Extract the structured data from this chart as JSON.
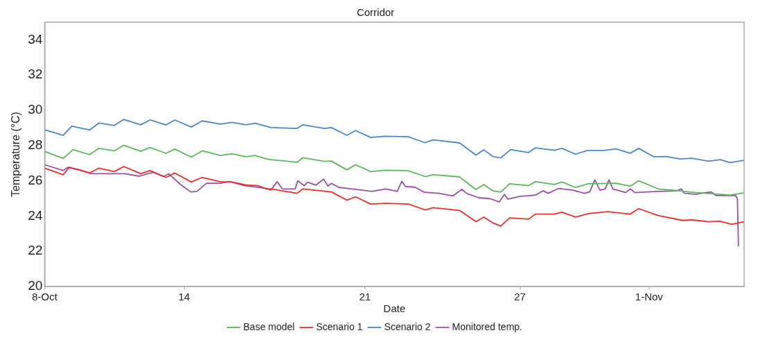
{
  "chart_data": {
    "type": "line",
    "title": "Corridor",
    "xlabel": "Date",
    "ylabel": "Temperature (°C)",
    "xlim": [
      8.6,
      35.68
    ],
    "xticks": [
      {
        "value": 8.6,
        "label": "8-Oct"
      },
      14,
      21,
      27,
      {
        "value": 32,
        "label": "1-Nov"
      }
    ],
    "ylim": [
      20,
      35
    ],
    "yticks": [
      20,
      22,
      24,
      26,
      28,
      30,
      32,
      34
    ],
    "grid": false,
    "legend": "bottom",
    "marker": "none",
    "line_style": "solid",
    "series": [
      {
        "name": "Base model",
        "color": "#5cb85c",
        "x": [
          8.6,
          9.32,
          9.7,
          10.34,
          10.7,
          11.3,
          11.66,
          12.32,
          12.68,
          13.3,
          13.64,
          14.28,
          14.7,
          15.4,
          15.85,
          16.4,
          16.75,
          17.2,
          17.36,
          18.37,
          18.6,
          19.43,
          19.7,
          20.3,
          20.64,
          21.22,
          21.8,
          22.68,
          23.33,
          23.64,
          24.66,
          25.3,
          25.6,
          25.95,
          26.26,
          26.6,
          27.33,
          27.6,
          28.33,
          28.63,
          29.15,
          29.65,
          30.72,
          31.27,
          31.6,
          32.35,
          32.9,
          33.83,
          35.13,
          35.68
        ],
        "values": [
          27.66,
          27.27,
          27.77,
          27.48,
          27.84,
          27.7,
          28.02,
          27.67,
          27.89,
          27.56,
          27.8,
          27.34,
          27.7,
          27.44,
          27.53,
          27.37,
          27.44,
          27.24,
          27.2,
          27.05,
          27.31,
          27.1,
          27.12,
          26.62,
          26.91,
          26.52,
          26.6,
          26.57,
          26.24,
          26.34,
          26.22,
          25.5,
          25.79,
          25.43,
          25.36,
          25.83,
          25.72,
          25.95,
          25.79,
          25.93,
          25.62,
          25.83,
          25.86,
          25.69,
          26.0,
          25.54,
          25.47,
          25.33,
          25.19,
          25.31
        ]
      },
      {
        "name": "Scenario 1",
        "color": "#ee2c2c",
        "x": [
          8.6,
          9.32,
          9.55,
          10.34,
          10.7,
          11.3,
          11.66,
          12.32,
          12.68,
          13.3,
          13.64,
          14.28,
          14.7,
          15.4,
          15.85,
          16.4,
          16.85,
          17.2,
          17.36,
          18.37,
          18.6,
          19.7,
          20.3,
          20.64,
          21.22,
          21.8,
          22.68,
          23.33,
          23.64,
          24.66,
          25.3,
          25.6,
          25.95,
          26.26,
          26.6,
          27.33,
          27.6,
          28.33,
          28.63,
          29.15,
          29.7,
          30.4,
          31.27,
          31.6,
          32.35,
          33.3,
          33.66,
          34.3,
          34.76,
          35.2,
          35.68
        ],
        "values": [
          26.72,
          26.34,
          26.77,
          26.44,
          26.72,
          26.52,
          26.81,
          26.4,
          26.58,
          26.19,
          26.44,
          25.93,
          26.19,
          25.95,
          25.93,
          25.76,
          25.72,
          25.54,
          25.54,
          25.29,
          25.54,
          25.37,
          24.9,
          25.09,
          24.68,
          24.72,
          24.68,
          24.35,
          24.47,
          24.32,
          23.68,
          23.94,
          23.61,
          23.43,
          23.89,
          23.82,
          24.11,
          24.11,
          24.22,
          23.94,
          24.15,
          24.25,
          24.11,
          24.42,
          24.03,
          23.75,
          23.78,
          23.68,
          23.7,
          23.53,
          23.68
        ]
      },
      {
        "name": "Scenario 2",
        "color": "#4a86c8",
        "x": [
          8.6,
          9.32,
          9.65,
          10.34,
          10.7,
          11.3,
          11.66,
          12.32,
          12.68,
          13.3,
          13.64,
          14.28,
          14.7,
          15.4,
          15.85,
          16.4,
          16.75,
          17.36,
          18.37,
          18.6,
          19.43,
          19.7,
          20.3,
          20.64,
          21.22,
          21.8,
          22.68,
          23.33,
          23.64,
          24.66,
          25.3,
          25.6,
          25.95,
          26.26,
          26.64,
          27.33,
          27.6,
          28.33,
          28.63,
          29.15,
          29.62,
          30.25,
          30.72,
          31.27,
          31.6,
          32.17,
          32.65,
          33.2,
          33.66,
          34.3,
          34.76,
          35.13,
          35.68
        ],
        "values": [
          28.89,
          28.58,
          29.1,
          28.88,
          29.28,
          29.14,
          29.48,
          29.18,
          29.45,
          29.17,
          29.45,
          29.05,
          29.4,
          29.22,
          29.32,
          29.18,
          29.27,
          29.02,
          28.97,
          29.18,
          28.97,
          29.02,
          28.58,
          28.85,
          28.46,
          28.53,
          28.5,
          28.16,
          28.32,
          28.15,
          27.46,
          27.76,
          27.38,
          27.3,
          27.77,
          27.6,
          27.87,
          27.73,
          27.84,
          27.51,
          27.72,
          27.72,
          27.81,
          27.56,
          27.84,
          27.37,
          27.38,
          27.24,
          27.28,
          27.11,
          27.2,
          27.03,
          27.16
        ]
      },
      {
        "name": "Monitored temp.",
        "color": "#9b4fa5",
        "x": [
          8.6,
          9.32,
          9.5,
          9.97,
          10.42,
          11.15,
          11.7,
          12.26,
          12.8,
          13.2,
          13.4,
          13.83,
          14.25,
          14.5,
          14.87,
          15.4,
          15.77,
          16.33,
          17.2,
          17.36,
          17.6,
          17.8,
          18.3,
          18.4,
          18.65,
          18.77,
          19.1,
          19.4,
          19.57,
          19.7,
          20.0,
          20.5,
          21.27,
          21.8,
          22.25,
          22.43,
          22.57,
          22.93,
          23.3,
          23.85,
          24.4,
          24.75,
          24.95,
          25.4,
          25.86,
          26.2,
          26.4,
          26.53,
          26.99,
          27.6,
          27.9,
          28.1,
          28.5,
          29.05,
          29.5,
          29.7,
          29.9,
          30.1,
          30.3,
          30.45,
          30.6,
          31.1,
          31.27,
          31.45,
          32.35,
          33.07,
          33.25,
          33.35,
          33.8,
          34.2,
          34.4,
          34.6,
          35.35,
          35.42,
          35.46
        ],
        "values": [
          26.91,
          26.58,
          26.77,
          26.62,
          26.4,
          26.4,
          26.4,
          26.26,
          26.48,
          26.24,
          26.4,
          25.83,
          25.37,
          25.4,
          25.86,
          25.86,
          25.95,
          25.72,
          25.57,
          25.47,
          25.95,
          25.54,
          25.54,
          26.0,
          25.72,
          25.92,
          25.75,
          26.09,
          25.7,
          25.85,
          25.62,
          25.54,
          25.4,
          25.54,
          25.4,
          25.97,
          25.67,
          25.64,
          25.35,
          25.29,
          25.14,
          25.51,
          25.27,
          25.04,
          24.98,
          24.8,
          25.23,
          24.96,
          25.11,
          25.19,
          25.43,
          25.29,
          25.57,
          25.47,
          25.29,
          25.37,
          26.05,
          25.47,
          25.54,
          26.05,
          25.54,
          25.33,
          25.54,
          25.33,
          25.4,
          25.43,
          25.54,
          25.3,
          25.23,
          25.33,
          25.37,
          25.16,
          25.16,
          24.98,
          22.31
        ]
      }
    ]
  }
}
